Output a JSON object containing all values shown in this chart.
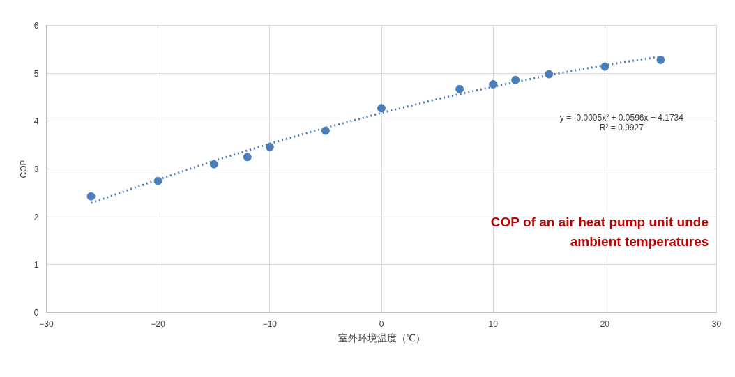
{
  "chart_data": {
    "type": "scatter",
    "xlabel": "室外环境温度（℃）",
    "ylabel": "COP",
    "xlim": [
      -30,
      30
    ],
    "xticks": [
      -30,
      -20,
      -10,
      0,
      10,
      20,
      30
    ],
    "ylim": [
      0,
      6
    ],
    "yticks": [
      0,
      1,
      2,
      3,
      4,
      5,
      6
    ],
    "grid": true,
    "series": [
      {
        "marker": "circle",
        "color": "#4a7ebb",
        "x": [
          -26,
          -20,
          -15,
          -12,
          -10,
          -5,
          0,
          7,
          10,
          12,
          15,
          20,
          25
        ],
        "values": [
          2.43,
          2.75,
          3.1,
          3.25,
          3.46,
          3.8,
          4.27,
          4.67,
          4.77,
          4.86,
          4.98,
          5.14,
          5.28
        ]
      },
      {
        "type": "line",
        "line_style": "dotted",
        "color": "#4a7ebb",
        "x": [
          -26,
          -20,
          -15,
          -10,
          -5,
          0,
          5,
          10,
          15,
          20,
          25
        ],
        "values": [
          2.29,
          2.78,
          3.17,
          3.53,
          3.86,
          4.17,
          4.46,
          4.72,
          4.96,
          5.17,
          5.35
        ]
      }
    ],
    "annotations": [
      "y = -0.0005x² + 0.0596x + 4.1734",
      "R² = 0.9927",
      "COP of an air heat pump unit unde\nambient temperatures"
    ]
  }
}
